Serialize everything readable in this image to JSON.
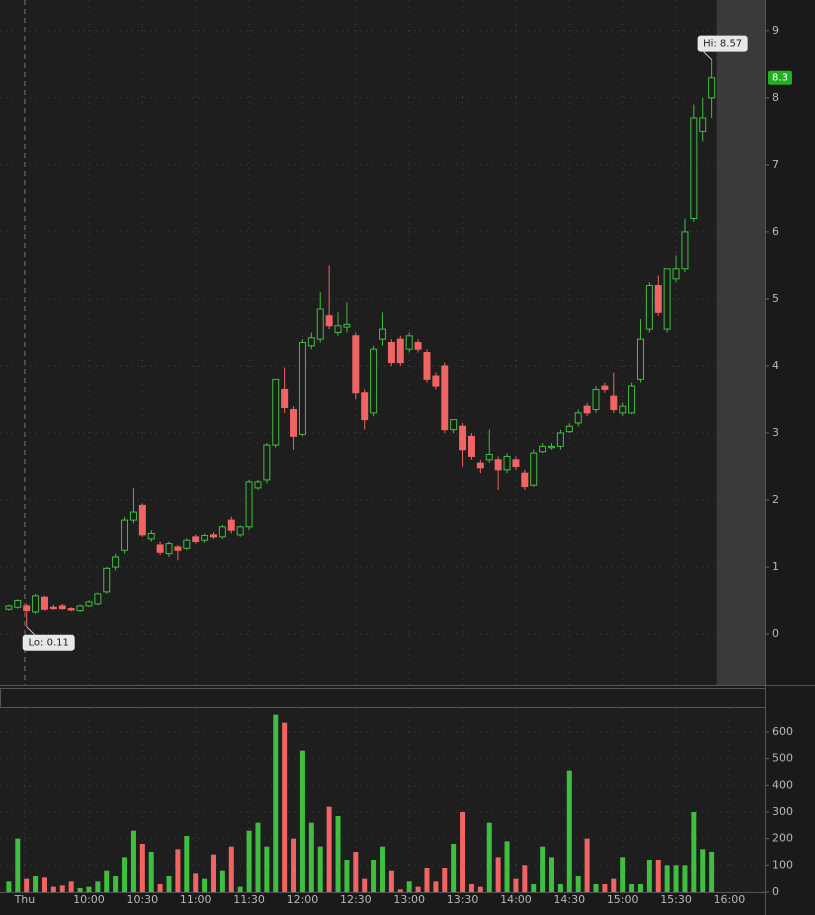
{
  "chart_data": [
    {
      "type": "candlestick",
      "x": [
        555,
        560,
        565,
        570,
        575,
        580,
        585,
        590,
        595,
        600,
        605,
        610,
        615,
        620,
        625,
        630,
        635,
        640,
        645,
        650,
        655,
        660,
        665,
        670,
        675,
        680,
        685,
        690,
        695,
        700,
        705,
        710,
        715,
        720,
        725,
        730,
        735,
        740,
        745,
        750,
        755,
        760,
        765,
        770,
        775,
        780,
        785,
        790,
        795,
        800,
        805,
        810,
        815,
        820,
        825,
        830,
        835,
        840,
        845,
        850,
        855,
        860,
        865,
        870,
        875,
        880,
        885,
        890,
        895,
        900,
        905,
        910,
        915,
        920,
        925,
        930,
        935,
        940,
        945,
        950
      ],
      "open": [
        0.37,
        0.4,
        0.42,
        0.33,
        0.55,
        0.4,
        0.42,
        0.38,
        0.35,
        0.42,
        0.45,
        0.63,
        1.0,
        1.25,
        1.7,
        1.92,
        1.42,
        1.33,
        1.2,
        1.3,
        1.28,
        1.45,
        1.4,
        1.48,
        1.45,
        1.7,
        1.48,
        1.6,
        2.18,
        2.3,
        2.82,
        3.65,
        3.35,
        2.98,
        4.3,
        4.4,
        4.75,
        4.5,
        4.58,
        4.45,
        3.6,
        3.3,
        4.4,
        4.35,
        4.4,
        4.25,
        4.35,
        4.2,
        3.85,
        4.0,
        3.05,
        3.1,
        2.95,
        2.55,
        2.6,
        2.6,
        2.45,
        2.6,
        2.4,
        2.22,
        2.72,
        2.78,
        2.8,
        3.02,
        3.15,
        3.4,
        3.35,
        3.7,
        3.55,
        3.3,
        3.3,
        3.8,
        4.55,
        5.2,
        4.55,
        5.3,
        5.45,
        6.2,
        7.5,
        8.0
      ],
      "high": [
        0.44,
        0.52,
        0.45,
        0.6,
        0.57,
        0.44,
        0.45,
        0.4,
        0.44,
        0.5,
        0.62,
        1.0,
        1.2,
        1.75,
        2.18,
        1.95,
        1.55,
        1.38,
        1.38,
        1.33,
        1.43,
        1.48,
        1.5,
        1.52,
        1.63,
        1.75,
        1.62,
        2.3,
        2.3,
        2.85,
        3.8,
        3.98,
        3.4,
        4.4,
        4.5,
        5.1,
        5.5,
        4.8,
        4.95,
        4.5,
        3.65,
        4.3,
        4.8,
        4.4,
        4.45,
        4.5,
        4.4,
        4.25,
        3.9,
        4.05,
        3.2,
        3.15,
        3.0,
        2.6,
        3.05,
        2.65,
        2.7,
        2.65,
        2.45,
        2.75,
        2.85,
        2.85,
        3.05,
        3.15,
        3.35,
        3.45,
        3.7,
        3.75,
        3.9,
        3.45,
        3.75,
        4.7,
        5.25,
        5.35,
        5.45,
        5.65,
        6.2,
        7.9,
        8.0,
        8.57
      ],
      "low": [
        0.35,
        0.38,
        0.11,
        0.3,
        0.35,
        0.36,
        0.36,
        0.34,
        0.33,
        0.4,
        0.43,
        0.6,
        0.95,
        1.2,
        1.65,
        1.45,
        1.38,
        1.18,
        1.15,
        1.1,
        1.25,
        1.35,
        1.36,
        1.42,
        1.42,
        1.5,
        1.45,
        1.55,
        2.15,
        2.25,
        2.78,
        3.3,
        2.75,
        2.95,
        4.25,
        4.35,
        4.55,
        4.45,
        4.5,
        3.5,
        3.05,
        3.25,
        4.3,
        4.0,
        4.0,
        4.2,
        4.2,
        3.75,
        3.65,
        3.0,
        3.0,
        2.5,
        2.6,
        2.4,
        2.55,
        2.15,
        2.4,
        2.45,
        2.15,
        2.2,
        2.7,
        2.75,
        2.75,
        3.0,
        3.1,
        3.25,
        3.3,
        3.6,
        3.3,
        3.25,
        3.28,
        3.75,
        4.5,
        4.75,
        4.5,
        5.25,
        5.4,
        6.15,
        7.35,
        7.7
      ],
      "close": [
        0.42,
        0.5,
        0.35,
        0.57,
        0.37,
        0.38,
        0.38,
        0.36,
        0.42,
        0.48,
        0.6,
        0.98,
        1.15,
        1.7,
        1.82,
        1.48,
        1.5,
        1.22,
        1.35,
        1.25,
        1.4,
        1.38,
        1.47,
        1.45,
        1.6,
        1.55,
        1.6,
        2.27,
        2.27,
        2.82,
        3.8,
        3.38,
        2.95,
        4.35,
        4.42,
        4.85,
        4.6,
        4.6,
        4.62,
        3.6,
        3.2,
        4.25,
        4.55,
        4.05,
        4.05,
        4.45,
        4.25,
        3.8,
        3.7,
        3.05,
        3.2,
        2.75,
        2.65,
        2.48,
        2.68,
        2.45,
        2.65,
        2.5,
        2.2,
        2.7,
        2.8,
        2.8,
        3.0,
        3.1,
        3.3,
        3.3,
        3.65,
        3.65,
        3.35,
        3.4,
        3.7,
        4.4,
        5.2,
        4.8,
        5.45,
        5.45,
        6.0,
        7.7,
        7.7,
        8.3
      ],
      "up_color": "#3fbf3f",
      "down_color": "#f06464",
      "xlim": [
        550,
        980
      ],
      "ylim": [
        -0.76,
        9.46
      ],
      "yticks": [
        0,
        1,
        2,
        3,
        4,
        5,
        6,
        7,
        8,
        9
      ],
      "xticks": [
        {
          "value": 564,
          "label": "Thu"
        },
        {
          "value": 600,
          "label": "10:00"
        },
        {
          "value": 630,
          "label": "10:30"
        },
        {
          "value": 660,
          "label": "11:00"
        },
        {
          "value": 690,
          "label": "11:30"
        },
        {
          "value": 720,
          "label": "12:00"
        },
        {
          "value": 750,
          "label": "12:30"
        },
        {
          "value": 780,
          "label": "13:00"
        },
        {
          "value": 810,
          "label": "13:30"
        },
        {
          "value": 840,
          "label": "14:00"
        },
        {
          "value": 870,
          "label": "14:30"
        },
        {
          "value": 900,
          "label": "15:00"
        },
        {
          "value": 930,
          "label": "15:30"
        },
        {
          "value": 960,
          "label": "16:00"
        }
      ],
      "grid": true,
      "hi_label": "Hi: 8.57",
      "lo_label": "Lo: 0.11",
      "last_price": 8.3
    },
    {
      "type": "bar",
      "x": [
        555,
        560,
        565,
        570,
        575,
        580,
        585,
        590,
        595,
        600,
        605,
        610,
        615,
        620,
        625,
        630,
        635,
        640,
        645,
        650,
        655,
        660,
        665,
        670,
        675,
        680,
        685,
        690,
        695,
        700,
        705,
        710,
        715,
        720,
        725,
        730,
        735,
        740,
        745,
        750,
        755,
        760,
        765,
        770,
        775,
        780,
        785,
        790,
        795,
        800,
        805,
        810,
        815,
        820,
        825,
        830,
        835,
        840,
        845,
        850,
        855,
        860,
        865,
        870,
        875,
        880,
        885,
        890,
        895,
        900,
        905,
        910,
        915,
        920,
        925,
        930,
        935,
        940,
        945,
        950
      ],
      "values": [
        40,
        200,
        50,
        60,
        55,
        20,
        25,
        40,
        15,
        20,
        40,
        80,
        60,
        130,
        230,
        180,
        150,
        30,
        60,
        160,
        210,
        70,
        50,
        140,
        80,
        170,
        20,
        230,
        260,
        170,
        665,
        635,
        200,
        530,
        260,
        170,
        320,
        285,
        120,
        150,
        50,
        120,
        170,
        80,
        10,
        40,
        20,
        90,
        40,
        90,
        180,
        300,
        30,
        20,
        260,
        130,
        190,
        50,
        100,
        30,
        170,
        130,
        30,
        455,
        60,
        200,
        30,
        30,
        50,
        130,
        30,
        30,
        120,
        120,
        100,
        100,
        100,
        300,
        160,
        150
      ],
      "xlim": [
        550,
        980
      ],
      "ylim": [
        0,
        690
      ],
      "yticks": [
        0,
        100,
        200,
        300,
        400,
        500,
        600
      ]
    }
  ]
}
